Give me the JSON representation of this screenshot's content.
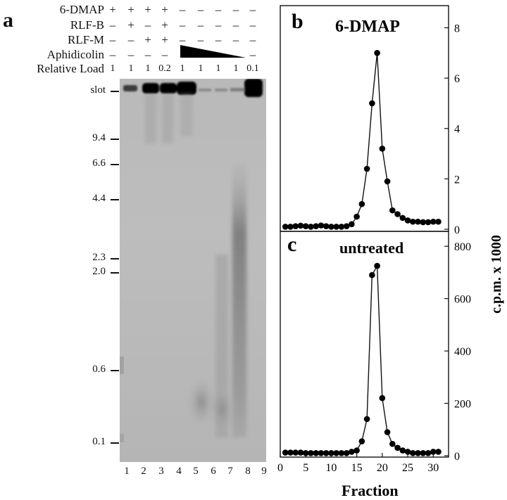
{
  "figure": {
    "panel_a": {
      "letter": "a",
      "conditions": [
        {
          "label": "6-DMAP",
          "signs": [
            "+",
            "+",
            "+",
            "+",
            "–",
            "–",
            "–",
            "–",
            "–"
          ]
        },
        {
          "label": "RLF-B",
          "signs": [
            "–",
            "+",
            "–",
            "+",
            "–",
            "–",
            "–",
            "–",
            "–"
          ]
        },
        {
          "label": "RLF-M",
          "signs": [
            "–",
            "–",
            "+",
            "+",
            "–",
            "–",
            "–",
            "–",
            "–"
          ]
        },
        {
          "label": "Aphidicolin",
          "signs": [
            "–",
            "–",
            "–",
            "–",
            "",
            "",
            "",
            "",
            "–"
          ]
        },
        {
          "label": "Relative Load",
          "signs": [
            "1",
            "1",
            "1",
            "0.2",
            "1",
            "1",
            "1",
            "1",
            "0.1"
          ]
        }
      ],
      "markers": [
        "slot",
        "9.4",
        "6.6",
        "4.4",
        "2.3",
        "2.0",
        "0.6",
        "0.1"
      ],
      "lanes": [
        "1",
        "2",
        "3",
        "4",
        "5",
        "6",
        "7",
        "8",
        "9"
      ]
    },
    "panel_b": {
      "letter": "b",
      "title": "6-DMAP"
    },
    "panel_c": {
      "letter": "c",
      "title": "untreated"
    },
    "ylabel": "c.p.m. x 1000",
    "xlabel": "Fraction"
  },
  "chart_data": [
    {
      "type": "line",
      "title": "6-DMAP",
      "xlabel": "Fraction",
      "ylabel": "c.p.m. x 1000",
      "xlim": [
        0,
        33
      ],
      "ylim": [
        0,
        8.6
      ],
      "yticks": [
        0,
        2,
        4,
        6,
        8
      ],
      "xticks": [
        0,
        5,
        10,
        15,
        20,
        25,
        30
      ],
      "x": [
        1,
        2,
        3,
        4,
        5,
        6,
        7,
        8,
        9,
        10,
        11,
        12,
        13,
        14,
        15,
        16,
        17,
        18,
        19,
        20,
        21,
        22,
        23,
        24,
        25,
        26,
        27,
        28,
        29,
        30,
        31
      ],
      "values": [
        0.1,
        0.1,
        0.12,
        0.14,
        0.12,
        0.1,
        0.12,
        0.15,
        0.12,
        0.1,
        0.1,
        0.1,
        0.12,
        0.2,
        0.5,
        1.0,
        2.4,
        5.0,
        7.0,
        3.2,
        1.9,
        0.75,
        0.6,
        0.45,
        0.35,
        0.3,
        0.3,
        0.28,
        0.28,
        0.3,
        0.3
      ]
    },
    {
      "type": "line",
      "title": "untreated",
      "xlabel": "Fraction",
      "ylabel": "c.p.m. x 1000",
      "xlim": [
        0,
        33
      ],
      "ylim": [
        0,
        830
      ],
      "yticks": [
        0,
        200,
        400,
        600,
        800
      ],
      "xticks": [
        0,
        5,
        10,
        15,
        20,
        25,
        30
      ],
      "x": [
        1,
        2,
        3,
        4,
        5,
        6,
        7,
        8,
        9,
        10,
        11,
        12,
        13,
        14,
        15,
        16,
        17,
        18,
        19,
        20,
        21,
        22,
        23,
        24,
        25,
        26,
        27,
        28,
        29,
        30,
        31
      ],
      "values": [
        12,
        12,
        12,
        12,
        10,
        10,
        10,
        10,
        10,
        10,
        10,
        10,
        10,
        15,
        20,
        55,
        140,
        690,
        725,
        220,
        90,
        45,
        30,
        20,
        15,
        10,
        10,
        10,
        10,
        15,
        15
      ]
    }
  ]
}
